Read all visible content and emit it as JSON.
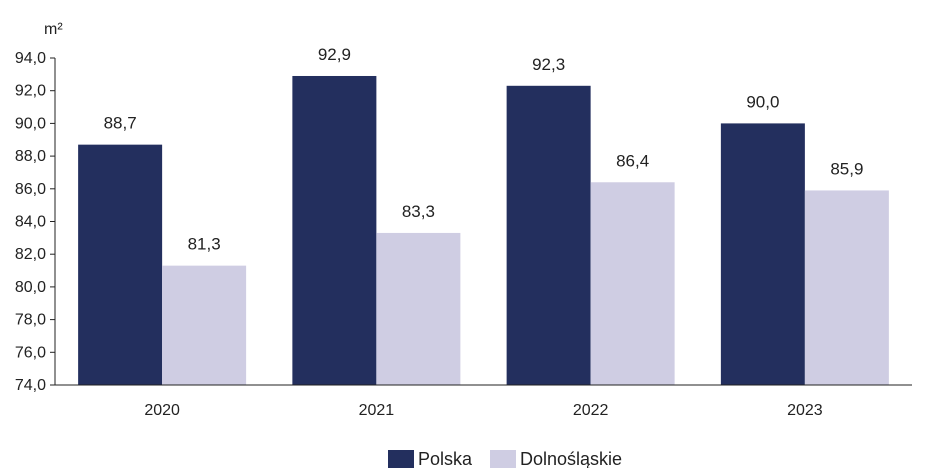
{
  "chart_data": {
    "type": "bar",
    "title": "",
    "unit_label": "m²",
    "xlabel": "",
    "ylabel": "",
    "categories": [
      "2020",
      "2021",
      "2022",
      "2023"
    ],
    "series": [
      {
        "name": "Polska",
        "values": [
          88.7,
          92.9,
          92.3,
          90.0
        ],
        "value_labels": [
          "88,7",
          "92,9",
          "92,3",
          "90,0"
        ],
        "color": "#232f5e"
      },
      {
        "name": "Dolnośląskie",
        "values": [
          81.3,
          83.3,
          86.4,
          85.9
        ],
        "value_labels": [
          "81,3",
          "83,3",
          "86,4",
          "85,9"
        ],
        "color": "#cfcde3"
      }
    ],
    "ylim": [
      74.0,
      94.0
    ],
    "yticks": [
      74.0,
      76.0,
      78.0,
      80.0,
      82.0,
      84.0,
      86.0,
      88.0,
      90.0,
      92.0,
      94.0
    ],
    "ytick_labels": [
      "74,0",
      "76,0",
      "78,0",
      "80,0",
      "82,0",
      "84,0",
      "86,0",
      "88,0",
      "90,0",
      "92,0",
      "94,0"
    ],
    "grid": false,
    "legend_position": "bottom-center",
    "legend_labels": [
      "Polska",
      "Dolnośląskie"
    ]
  }
}
